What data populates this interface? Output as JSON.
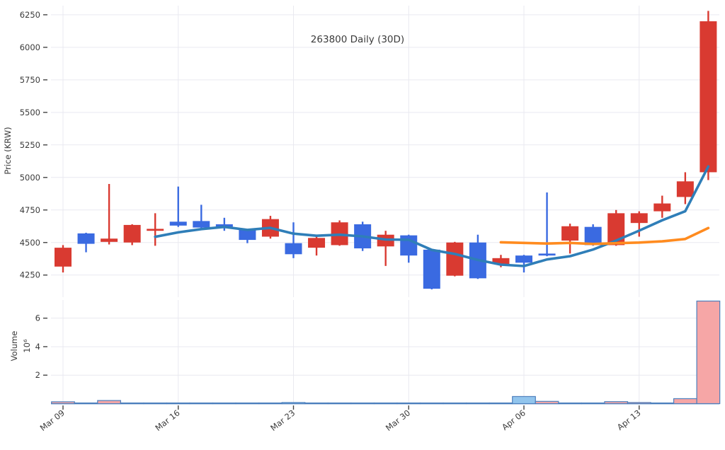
{
  "title": "263800 Daily (30D)",
  "price_axis": {
    "label": "Price (KRW)",
    "ticks": [
      6250,
      6000,
      5750,
      5500,
      5250,
      5000,
      4750,
      4500,
      4250
    ]
  },
  "volume_axis": {
    "label": "Volume",
    "scale_label": "10⁶",
    "ticks": [
      2,
      4,
      6
    ]
  },
  "x_axis": {
    "tick_labels": [
      "Mar 09",
      "Mar 16",
      "Mar 23",
      "Mar 30",
      "Apr 06",
      "Apr 13"
    ],
    "tick_indices": [
      0,
      5,
      10,
      15,
      20,
      25
    ]
  },
  "chart_data": {
    "type": "candlestick+volume",
    "symbol": "263800",
    "period": "Daily (30D)",
    "dates": [
      "Mar 09",
      "Mar 10",
      "Mar 11",
      "Mar 12",
      "Mar 13",
      "Mar 16",
      "Mar 17",
      "Mar 18",
      "Mar 19",
      "Mar 20",
      "Mar 23",
      "Mar 24",
      "Mar 25",
      "Mar 26",
      "Mar 27",
      "Mar 30",
      "Mar 31",
      "Apr 01",
      "Apr 02",
      "Apr 03",
      "Apr 06",
      "Apr 07",
      "Apr 08",
      "Apr 09",
      "Apr 10",
      "Apr 13",
      "Apr 14",
      "Apr 16",
      "Apr 17"
    ],
    "ohlc": [
      [
        4315,
        4480,
        4270,
        4460
      ],
      [
        4570,
        4575,
        4425,
        4490
      ],
      [
        4505,
        4950,
        4485,
        4530
      ],
      [
        4500,
        4640,
        4480,
        4635
      ],
      [
        4590,
        4725,
        4475,
        4605
      ],
      [
        4660,
        4930,
        4620,
        4630
      ],
      [
        4665,
        4790,
        4610,
        4615
      ],
      [
        4640,
        4690,
        4590,
        4615
      ],
      [
        4600,
        4605,
        4495,
        4520
      ],
      [
        4545,
        4705,
        4530,
        4680
      ],
      [
        4495,
        4655,
        4380,
        4410
      ],
      [
        4460,
        4560,
        4400,
        4535
      ],
      [
        4480,
        4670,
        4475,
        4655
      ],
      [
        4640,
        4660,
        4435,
        4455
      ],
      [
        4470,
        4590,
        4320,
        4560
      ],
      [
        4555,
        4560,
        4345,
        4400
      ],
      [
        4445,
        4450,
        4140,
        4145
      ],
      [
        4245,
        4505,
        4240,
        4500
      ],
      [
        4500,
        4560,
        4220,
        4225
      ],
      [
        4335,
        4405,
        4310,
        4380
      ],
      [
        4400,
        4405,
        4270,
        4345
      ],
      [
        4415,
        4885,
        4395,
        4400
      ],
      [
        4515,
        4645,
        4415,
        4625
      ],
      [
        4620,
        4640,
        4475,
        4480
      ],
      [
        4480,
        4750,
        4475,
        4725
      ],
      [
        4650,
        4740,
        4545,
        4725
      ],
      [
        4740,
        4860,
        4690,
        4800
      ],
      [
        4850,
        5040,
        4795,
        4970
      ],
      [
        5040,
        6280,
        4980,
        6200
      ]
    ],
    "volume_millions": [
      0.13,
      0.03,
      0.22,
      0.04,
      0.03,
      0.03,
      0.02,
      0.02,
      0.02,
      0.03,
      0.08,
      0.02,
      0.03,
      0.02,
      0.02,
      0.03,
      0.05,
      0.04,
      0.03,
      0.02,
      0.5,
      0.16,
      0.04,
      0.03,
      0.14,
      0.08,
      0.04,
      0.35,
      7.2
    ],
    "ma5": [
      null,
      null,
      null,
      null,
      4544,
      4578,
      4603,
      4620,
      4597,
      4612,
      4568,
      4552,
      4560,
      4547,
      4523,
      4521,
      4443,
      4412,
      4366,
      4330,
      4319,
      4370,
      4395,
      4446,
      4515,
      4591,
      4671,
      4740,
      5084
    ],
    "ma20": [
      null,
      null,
      null,
      null,
      null,
      null,
      null,
      null,
      null,
      null,
      null,
      null,
      null,
      null,
      null,
      null,
      null,
      null,
      null,
      4502,
      4497,
      4492,
      4497,
      4489,
      4495,
      4500,
      4509,
      4527,
      4611
    ],
    "price_ylim": [
      4080,
      6320
    ],
    "volume_ylim": [
      0,
      7.28
    ],
    "grid": true,
    "legend": "none"
  },
  "colors": {
    "up": "#d93a31",
    "down": "#3a6ae1",
    "ma5": "#2f7eb8",
    "ma20": "#ff8b1f",
    "vol_up_fill": "#f6a6a6",
    "vol_down_fill": "#92c5ed",
    "vol_edge": "#4c7fbd",
    "grid": "#e9e9f0",
    "tick": "#444444",
    "text": "#3b3b3b",
    "background": "#ffffff"
  }
}
